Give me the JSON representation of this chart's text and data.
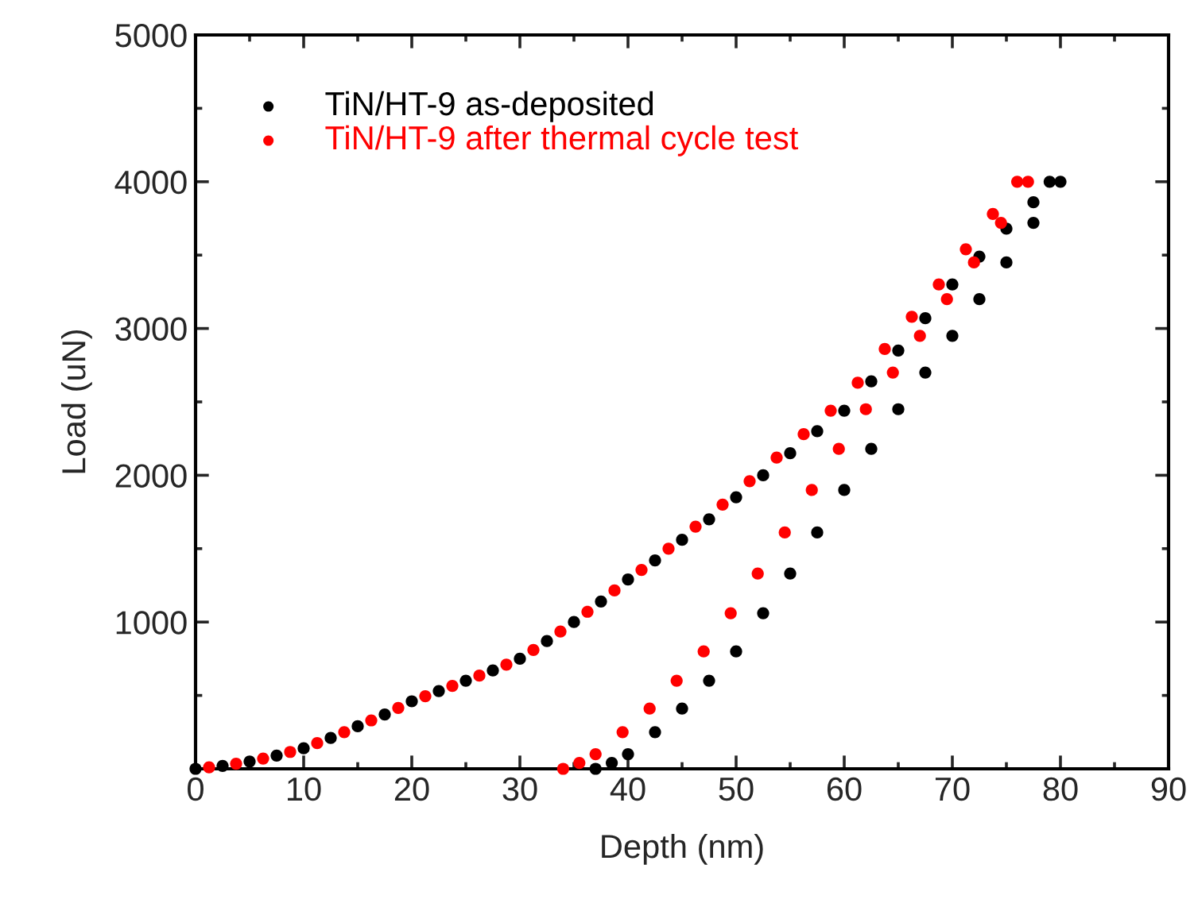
{
  "chart_data": {
    "type": "scatter",
    "xlabel": "Depth (nm)",
    "ylabel": "Load (uN)",
    "xlim": [
      0,
      90
    ],
    "ylim": [
      0,
      5000
    ],
    "xticks": [
      0,
      10,
      20,
      30,
      40,
      50,
      60,
      70,
      80,
      90
    ],
    "yticks": [
      1000,
      2000,
      3000,
      4000,
      5000
    ],
    "legend": "top left",
    "marker": "circle",
    "grid": false,
    "series": [
      {
        "name": "TiN/HT-9 as-deposited",
        "color": "#000000",
        "x": [
          0,
          2.5,
          5,
          7.5,
          10,
          12.5,
          15,
          17.5,
          20,
          22.5,
          25,
          27.5,
          30,
          32.5,
          35,
          37.5,
          40,
          42.5,
          45,
          47.5,
          50,
          52.5,
          55,
          57.5,
          60,
          62.5,
          65,
          67.5,
          70,
          72.5,
          75,
          77.5,
          79,
          80,
          77.5,
          75,
          72.5,
          70,
          67.5,
          65,
          62.5,
          60,
          57.5,
          55,
          52.5,
          50,
          47.5,
          45,
          42.5,
          40,
          38.5,
          37
        ],
        "values": [
          0,
          20,
          50,
          90,
          140,
          210,
          290,
          370,
          460,
          530,
          600,
          670,
          750,
          870,
          1000,
          1140,
          1290,
          1420,
          1560,
          1700,
          1850,
          2000,
          2150,
          2300,
          2440,
          2640,
          2850,
          3070,
          3300,
          3490,
          3680,
          3860,
          4000,
          4000,
          3720,
          3450,
          3200,
          2950,
          2700,
          2450,
          2180,
          1900,
          1610,
          1330,
          1060,
          800,
          600,
          410,
          250,
          100,
          40,
          0
        ]
      },
      {
        "name": "TiN/HT-9 after thermal cycle test",
        "color": "#ff0000",
        "x": [
          1.25,
          3.75,
          6.25,
          8.75,
          11.25,
          13.75,
          16.25,
          18.75,
          21.25,
          23.75,
          26.25,
          28.75,
          31.25,
          33.75,
          36.25,
          38.75,
          41.25,
          43.75,
          46.25,
          48.75,
          51.25,
          53.75,
          56.25,
          58.75,
          61.25,
          63.75,
          66.25,
          68.75,
          71.25,
          73.75,
          76,
          77,
          74.5,
          72,
          69.5,
          67,
          64.5,
          62,
          59.5,
          57,
          54.5,
          52,
          49.5,
          47,
          44.5,
          42,
          39.5,
          37,
          35.5,
          34
        ],
        "values": [
          10,
          35,
          70,
          115,
          175,
          250,
          330,
          415,
          495,
          565,
          635,
          710,
          810,
          935,
          1070,
          1215,
          1355,
          1500,
          1650,
          1800,
          1960,
          2120,
          2280,
          2440,
          2630,
          2860,
          3080,
          3300,
          3540,
          3780,
          4000,
          4000,
          3720,
          3450,
          3200,
          2950,
          2700,
          2450,
          2180,
          1900,
          1610,
          1330,
          1060,
          800,
          600,
          410,
          250,
          100,
          40,
          0
        ]
      }
    ]
  }
}
